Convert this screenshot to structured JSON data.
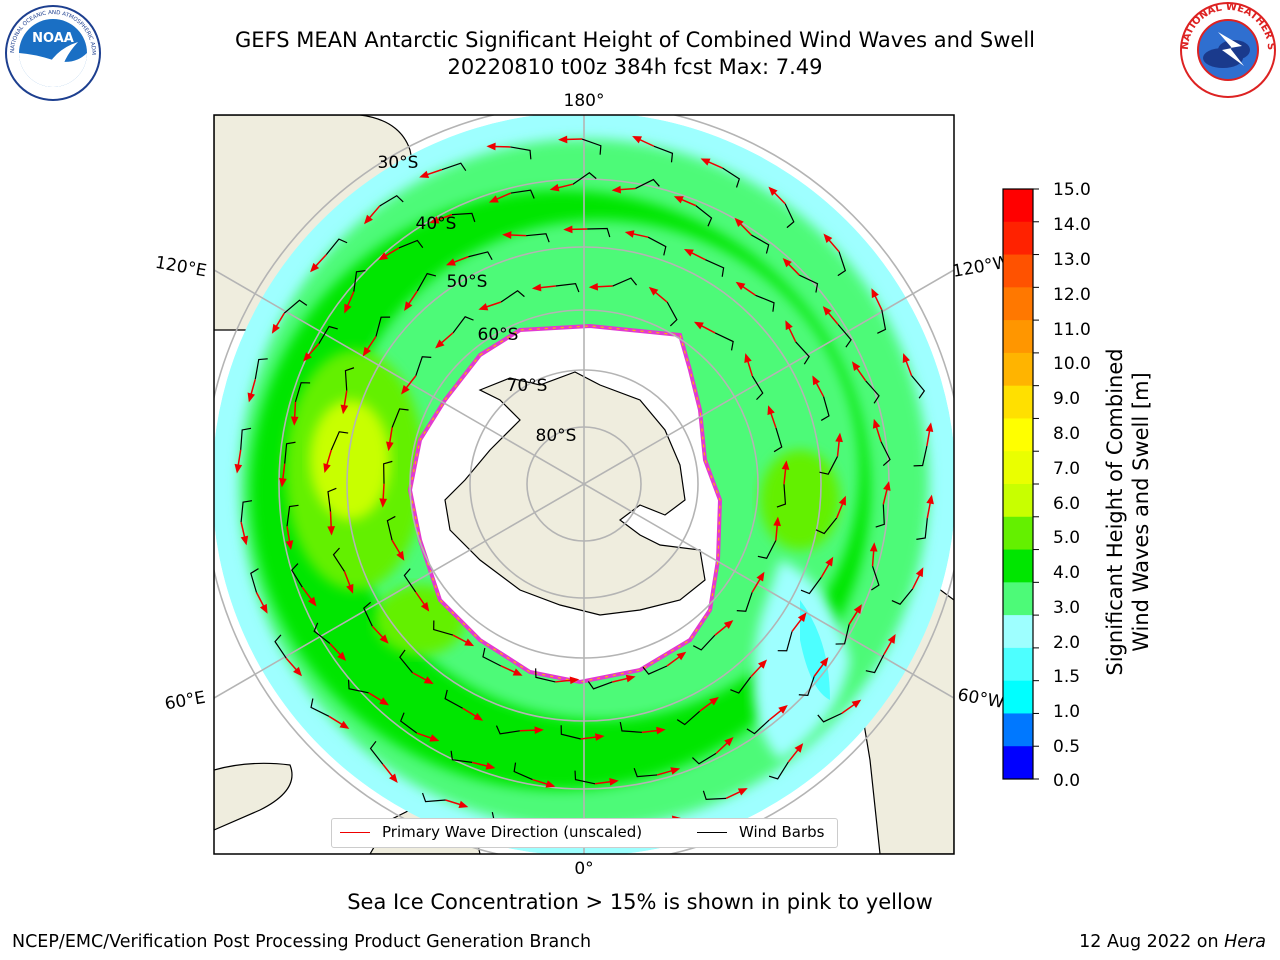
{
  "title": {
    "line1": "GEFS MEAN Antarctic Significant Height of Combined Wind Waves and Swell",
    "line2": "20220810 t00z 384h fcst   Max: 7.49"
  },
  "logos": {
    "left": "noaa-logo",
    "right": "national-weather-service-logo"
  },
  "map": {
    "projection": "south-polar-stereographic",
    "lon_labels": [
      "180°",
      "120°E",
      "120°W",
      "60°E",
      "60°W",
      "0°"
    ],
    "lat_labels": [
      "30°S",
      "40°S",
      "50°S",
      "60°S",
      "70°S",
      "80°S"
    ],
    "colors": {
      "land": "#efedde",
      "sea_ice": "#ffffff",
      "ice_edge": "#e23ad0",
      "grid": "#b4b4b4"
    }
  },
  "colorbar": {
    "label_line1": "Significant Height of Combined",
    "label_line2": "Wind Waves and Swell [m]",
    "ticks": [
      "15.0",
      "14.0",
      "13.0",
      "12.0",
      "11.0",
      "10.0",
      "9.0",
      "8.0",
      "7.0",
      "6.0",
      "5.0",
      "4.0",
      "3.0",
      "2.0",
      "1.5",
      "1.0",
      "0.5",
      "0.0"
    ],
    "colors_top_to_bottom": [
      "#ff0000",
      "#ff2200",
      "#ff5200",
      "#ff7800",
      "#ff9600",
      "#ffb400",
      "#ffe000",
      "#ffff00",
      "#eaff00",
      "#c8ff00",
      "#64f000",
      "#00e600",
      "#4dfa78",
      "#9effff",
      "#4dffff",
      "#00ffff",
      "#0078ff",
      "#0000ff"
    ]
  },
  "legend": {
    "wave_label": "Primary Wave Direction (unscaled)",
    "wind_label": "Wind Barbs"
  },
  "subtitle": "Sea Ice Concentration > 15% is shown in pink to yellow",
  "footer": {
    "left": "NCEP/EMC/Verification Post Processing Product Generation Branch",
    "right_date": "12 Aug 2022 on ",
    "right_host": "Hera"
  }
}
